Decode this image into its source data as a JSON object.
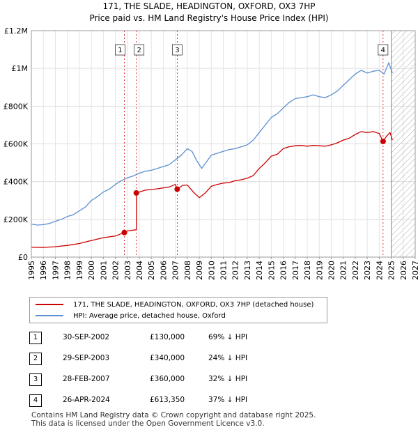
{
  "title_line1": "171, THE SLADE, HEADINGTON, OXFORD, OX3 7HP",
  "title_line2": "Price paid vs. HM Land Registry's House Price Index (HPI)",
  "colors": {
    "property": "#cc0000",
    "hpi": "#5b8fd0",
    "marker": "#cc0000",
    "hatch": "#aaaaaa"
  },
  "legend": {
    "property_label": "171, THE SLADE, HEADINGTON, OXFORD, OX3 7HP (detached house)",
    "hpi_label": "HPI: Average price, detached house, Oxford"
  },
  "transactions": [
    {
      "num": "1",
      "date": "30-SEP-2002",
      "price": "£130,000",
      "hpi": "69% ↓ HPI"
    },
    {
      "num": "2",
      "date": "29-SEP-2003",
      "price": "£340,000",
      "hpi": "24% ↓ HPI"
    },
    {
      "num": "3",
      "date": "28-FEB-2007",
      "price": "£360,000",
      "hpi": "32% ↓ HPI"
    },
    {
      "num": "4",
      "date": "26-APR-2024",
      "price": "£613,350",
      "hpi": "37% ↓ HPI"
    }
  ],
  "footer_line1": "Contains HM Land Registry data © Crown copyright and database right 2025.",
  "footer_line2": "This data is licensed under the Open Government Licence v3.0.",
  "chart_data": {
    "type": "line",
    "title": "171, THE SLADE, HEADINGTON, OXFORD, OX3 7HP",
    "subtitle": "Price paid vs. HM Land Registry's House Price Index (HPI)",
    "xlim": [
      1995,
      2027
    ],
    "ylim": [
      0,
      1200000
    ],
    "y_ticks": [
      {
        "value": 0,
        "label": "£0"
      },
      {
        "value": 200000,
        "label": "£200K"
      },
      {
        "value": 400000,
        "label": "£400K"
      },
      {
        "value": 600000,
        "label": "£600K"
      },
      {
        "value": 800000,
        "label": "£800K"
      },
      {
        "value": 1000000,
        "label": "£1M"
      },
      {
        "value": 1200000,
        "label": "£1.2M"
      }
    ],
    "x_ticks": [
      "1995",
      "1996",
      "1997",
      "1998",
      "1999",
      "2000",
      "2001",
      "2002",
      "2003",
      "2004",
      "2005",
      "2006",
      "2007",
      "2008",
      "2009",
      "2010",
      "2011",
      "2012",
      "2013",
      "2014",
      "2015",
      "2016",
      "2017",
      "2018",
      "2019",
      "2020",
      "2021",
      "2022",
      "2023",
      "2024",
      "2025",
      "2026",
      "2027"
    ],
    "hatched_from": 2025.0,
    "sales": [
      {
        "label": "1",
        "x": 2002.75,
        "y": 130000
      },
      {
        "label": "2",
        "x": 2003.75,
        "y": 340000
      },
      {
        "label": "3",
        "x": 2007.16,
        "y": 360000
      },
      {
        "label": "4",
        "x": 2024.32,
        "y": 613350
      }
    ],
    "series": [
      {
        "name": "171, THE SLADE, HEADINGTON, OXFORD, OX3 7HP (detached house)",
        "points": [
          [
            1995.0,
            52000
          ],
          [
            1996.0,
            51500
          ],
          [
            1997.0,
            55000
          ],
          [
            1998.0,
            62000
          ],
          [
            1999.0,
            72000
          ],
          [
            2000.0,
            88000
          ],
          [
            2001.0,
            103000
          ],
          [
            2002.0,
            112000
          ],
          [
            2002.75,
            130000
          ],
          [
            2003.0,
            139000
          ],
          [
            2003.75,
            145000
          ],
          [
            2003.76,
            340000
          ],
          [
            2004.5,
            355000
          ],
          [
            2005.5,
            362000
          ],
          [
            2006.5,
            372000
          ],
          [
            2007.0,
            385000
          ],
          [
            2007.16,
            360000
          ],
          [
            2007.6,
            380000
          ],
          [
            2008.0,
            382000
          ],
          [
            2008.5,
            345000
          ],
          [
            2009.0,
            315000
          ],
          [
            2009.5,
            340000
          ],
          [
            2010.0,
            375000
          ],
          [
            2010.5,
            385000
          ],
          [
            2011.0,
            392000
          ],
          [
            2011.5,
            395000
          ],
          [
            2012.0,
            405000
          ],
          [
            2012.5,
            410000
          ],
          [
            2013.0,
            418000
          ],
          [
            2013.5,
            432000
          ],
          [
            2014.0,
            470000
          ],
          [
            2014.5,
            500000
          ],
          [
            2015.0,
            535000
          ],
          [
            2015.5,
            545000
          ],
          [
            2016.0,
            575000
          ],
          [
            2016.5,
            585000
          ],
          [
            2017.0,
            590000
          ],
          [
            2017.5,
            592000
          ],
          [
            2018.0,
            588000
          ],
          [
            2018.5,
            592000
          ],
          [
            2019.0,
            590000
          ],
          [
            2019.5,
            588000
          ],
          [
            2020.0,
            595000
          ],
          [
            2020.5,
            605000
          ],
          [
            2021.0,
            620000
          ],
          [
            2021.5,
            630000
          ],
          [
            2022.0,
            650000
          ],
          [
            2022.5,
            665000
          ],
          [
            2023.0,
            660000
          ],
          [
            2023.5,
            665000
          ],
          [
            2024.0,
            655000
          ],
          [
            2024.32,
            613350
          ],
          [
            2024.6,
            640000
          ],
          [
            2024.9,
            660000
          ],
          [
            2025.1,
            620000
          ]
        ]
      },
      {
        "name": "HPI: Average price, detached house, Oxford",
        "points": [
          [
            1995.0,
            175000
          ],
          [
            1995.5,
            170000
          ],
          [
            1996.0,
            172000
          ],
          [
            1996.5,
            178000
          ],
          [
            1997.0,
            190000
          ],
          [
            1997.5,
            200000
          ],
          [
            1998.0,
            215000
          ],
          [
            1998.5,
            225000
          ],
          [
            1999.0,
            245000
          ],
          [
            1999.5,
            265000
          ],
          [
            2000.0,
            300000
          ],
          [
            2000.5,
            320000
          ],
          [
            2001.0,
            345000
          ],
          [
            2001.5,
            360000
          ],
          [
            2002.0,
            385000
          ],
          [
            2002.5,
            405000
          ],
          [
            2003.0,
            420000
          ],
          [
            2003.5,
            430000
          ],
          [
            2004.0,
            445000
          ],
          [
            2004.5,
            455000
          ],
          [
            2005.0,
            460000
          ],
          [
            2005.5,
            470000
          ],
          [
            2006.0,
            480000
          ],
          [
            2006.5,
            490000
          ],
          [
            2007.0,
            515000
          ],
          [
            2007.5,
            540000
          ],
          [
            2008.0,
            575000
          ],
          [
            2008.4,
            560000
          ],
          [
            2008.8,
            510000
          ],
          [
            2009.2,
            470000
          ],
          [
            2009.6,
            505000
          ],
          [
            2010.0,
            540000
          ],
          [
            2010.5,
            550000
          ],
          [
            2011.0,
            560000
          ],
          [
            2011.5,
            570000
          ],
          [
            2012.0,
            575000
          ],
          [
            2012.5,
            585000
          ],
          [
            2013.0,
            595000
          ],
          [
            2013.5,
            620000
          ],
          [
            2014.0,
            660000
          ],
          [
            2014.5,
            700000
          ],
          [
            2015.0,
            740000
          ],
          [
            2015.5,
            760000
          ],
          [
            2016.0,
            790000
          ],
          [
            2016.5,
            820000
          ],
          [
            2017.0,
            840000
          ],
          [
            2017.5,
            845000
          ],
          [
            2018.0,
            850000
          ],
          [
            2018.5,
            860000
          ],
          [
            2019.0,
            850000
          ],
          [
            2019.5,
            845000
          ],
          [
            2020.0,
            860000
          ],
          [
            2020.5,
            880000
          ],
          [
            2021.0,
            910000
          ],
          [
            2021.5,
            940000
          ],
          [
            2022.0,
            970000
          ],
          [
            2022.5,
            990000
          ],
          [
            2023.0,
            975000
          ],
          [
            2023.5,
            985000
          ],
          [
            2024.0,
            990000
          ],
          [
            2024.4,
            970000
          ],
          [
            2024.8,
            1030000
          ],
          [
            2025.1,
            975000
          ]
        ]
      }
    ]
  }
}
